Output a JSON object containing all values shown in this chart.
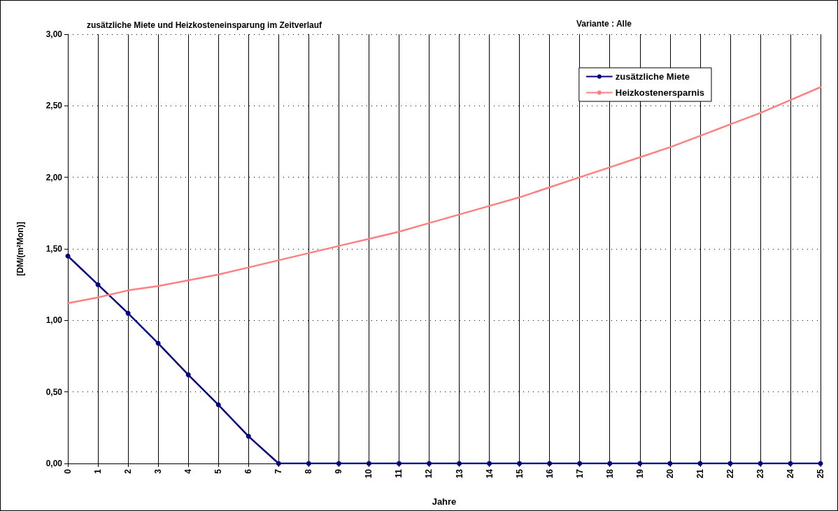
{
  "chart_data": {
    "type": "line",
    "title": "zusätzliche Miete und Heizkosteneinsparung im Zeitverlauf",
    "subtitle": "Variante : Alle",
    "xlabel": "Jahre",
    "ylabel": "[DM/(m²Mon)]",
    "x": [
      0,
      1,
      2,
      3,
      4,
      5,
      6,
      7,
      8,
      9,
      10,
      11,
      12,
      13,
      14,
      15,
      16,
      17,
      18,
      19,
      20,
      21,
      22,
      23,
      24,
      25
    ],
    "series": [
      {
        "name": "zusätzliche Miete",
        "color": "#000080",
        "marker": "circle",
        "values": [
          1.45,
          1.25,
          1.05,
          0.84,
          0.62,
          0.41,
          0.19,
          0,
          0,
          0,
          0,
          0,
          0,
          0,
          0,
          0,
          0,
          0,
          0,
          0,
          0,
          0,
          0,
          0,
          0,
          0
        ]
      },
      {
        "name": "Heizkostenersparnis",
        "color": "#ff8080",
        "marker": "none",
        "values": [
          1.12,
          1.16,
          1.21,
          1.24,
          1.28,
          1.32,
          1.37,
          1.42,
          1.47,
          1.52,
          1.57,
          1.62,
          1.68,
          1.74,
          1.8,
          1.86,
          1.93,
          2,
          2.07,
          2.14,
          2.21,
          2.29,
          2.37,
          2.45,
          2.54,
          2.63
        ]
      }
    ],
    "xlim": [
      0,
      25
    ],
    "xticks": [
      0,
      1,
      2,
      3,
      4,
      5,
      6,
      7,
      8,
      9,
      10,
      11,
      12,
      13,
      14,
      15,
      16,
      17,
      18,
      19,
      20,
      21,
      22,
      23,
      24,
      25
    ],
    "ylim": [
      0,
      3
    ],
    "yticks": [
      {
        "value": 0,
        "label": "0,00"
      },
      {
        "value": 0.5,
        "label": "0,50"
      },
      {
        "value": 1,
        "label": "1,00"
      },
      {
        "value": 1.5,
        "label": "1,50"
      },
      {
        "value": 2,
        "label": "2,00"
      },
      {
        "value": 2.5,
        "label": "2,50"
      },
      {
        "value": 3,
        "label": "3,00"
      }
    ],
    "grid": true,
    "legend": "top right",
    "line_style": "solid"
  }
}
